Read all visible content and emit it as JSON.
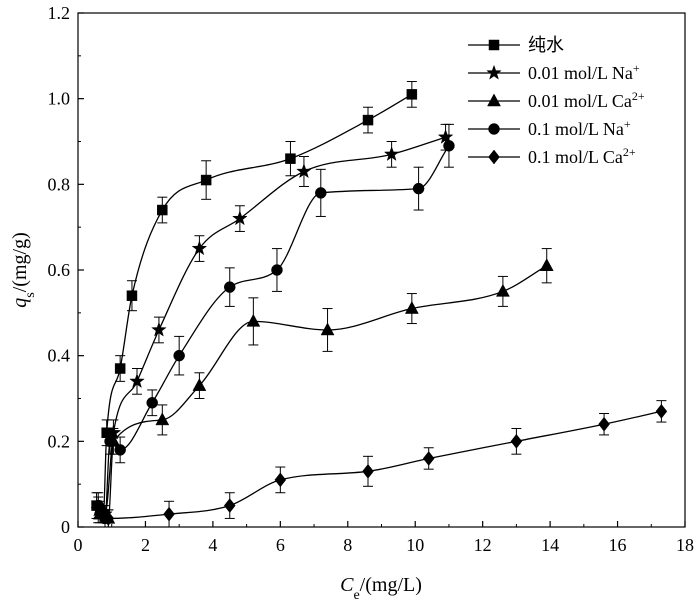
{
  "chart_data": {
    "type": "scatter",
    "xlabel_sym": "C",
    "xlabel_sub": "e",
    "xlabel_unit": "/(mg/L)",
    "ylabel_sym": "q",
    "ylabel_sub": "s",
    "ylabel_unit": "/(mg/g)",
    "xlim": [
      0,
      18
    ],
    "ylim": [
      0,
      1.2
    ],
    "xticks": [
      "0",
      "2",
      "4",
      "6",
      "8",
      "10",
      "12",
      "14",
      "16",
      "18"
    ],
    "yticks": [
      "0",
      "0.2",
      "0.4",
      "0.6",
      "0.8",
      "1.0",
      "1.2"
    ],
    "grid": false,
    "legend_position": "top-right",
    "series": [
      {
        "name": "纯水",
        "name_parts": [
          "纯水",
          "",
          ""
        ],
        "marker": "square",
        "x": [
          0.55,
          0.75,
          0.85,
          1.25,
          1.6,
          2.5,
          3.8,
          6.3,
          8.6,
          9.9
        ],
        "y": [
          0.05,
          0.03,
          0.22,
          0.37,
          0.54,
          0.74,
          0.81,
          0.86,
          0.95,
          1.01
        ],
        "err": [
          0.03,
          0.02,
          0.03,
          0.03,
          0.035,
          0.03,
          0.045,
          0.04,
          0.03,
          0.03
        ]
      },
      {
        "name": "0.01 mol/L Na+",
        "name_parts": [
          "0.01 mol/L Na",
          "+",
          ""
        ],
        "marker": "star",
        "x": [
          0.6,
          0.8,
          1.05,
          1.75,
          2.4,
          3.6,
          4.8,
          6.7,
          9.3,
          10.9
        ],
        "y": [
          0.04,
          0.03,
          0.22,
          0.34,
          0.46,
          0.65,
          0.72,
          0.83,
          0.87,
          0.91
        ],
        "err": [
          0.03,
          0.02,
          0.03,
          0.03,
          0.03,
          0.03,
          0.03,
          0.035,
          0.03,
          0.03
        ]
      },
      {
        "name": "0.01 mol/L Ca2+",
        "name_parts": [
          "0.01 mol/L Ca",
          "2+",
          ""
        ],
        "marker": "triangle",
        "x": [
          0.65,
          0.9,
          1.05,
          2.5,
          3.6,
          5.2,
          7.4,
          9.9,
          12.6,
          13.9
        ],
        "y": [
          0.03,
          0.02,
          0.2,
          0.25,
          0.33,
          0.48,
          0.46,
          0.51,
          0.55,
          0.61
        ],
        "err": [
          0.02,
          0.02,
          0.03,
          0.035,
          0.03,
          0.055,
          0.05,
          0.035,
          0.035,
          0.04
        ]
      },
      {
        "name": "0.1 mol/L Na+",
        "name_parts": [
          "0.1 mol/L Na",
          "+",
          ""
        ],
        "marker": "circle",
        "x": [
          0.6,
          0.8,
          0.95,
          1.25,
          2.2,
          3.0,
          4.5,
          5.9,
          7.2,
          10.1,
          11.0
        ],
        "y": [
          0.05,
          0.02,
          0.2,
          0.18,
          0.29,
          0.4,
          0.56,
          0.6,
          0.78,
          0.79,
          0.89
        ],
        "err": [
          0.03,
          0.02,
          0.03,
          0.03,
          0.03,
          0.045,
          0.045,
          0.05,
          0.055,
          0.05,
          0.05
        ]
      },
      {
        "name": "0.1 mol/L Ca2+",
        "name_parts": [
          "0.1 mol/L Ca",
          "2+",
          ""
        ],
        "marker": "diamond",
        "x": [
          0.65,
          0.9,
          2.7,
          4.5,
          6.0,
          8.6,
          10.4,
          13.0,
          15.6,
          17.3
        ],
        "y": [
          0.04,
          0.02,
          0.03,
          0.05,
          0.11,
          0.13,
          0.16,
          0.2,
          0.24,
          0.27
        ],
        "err": [
          0.02,
          0.02,
          0.03,
          0.03,
          0.03,
          0.035,
          0.025,
          0.03,
          0.025,
          0.025
        ]
      }
    ]
  }
}
